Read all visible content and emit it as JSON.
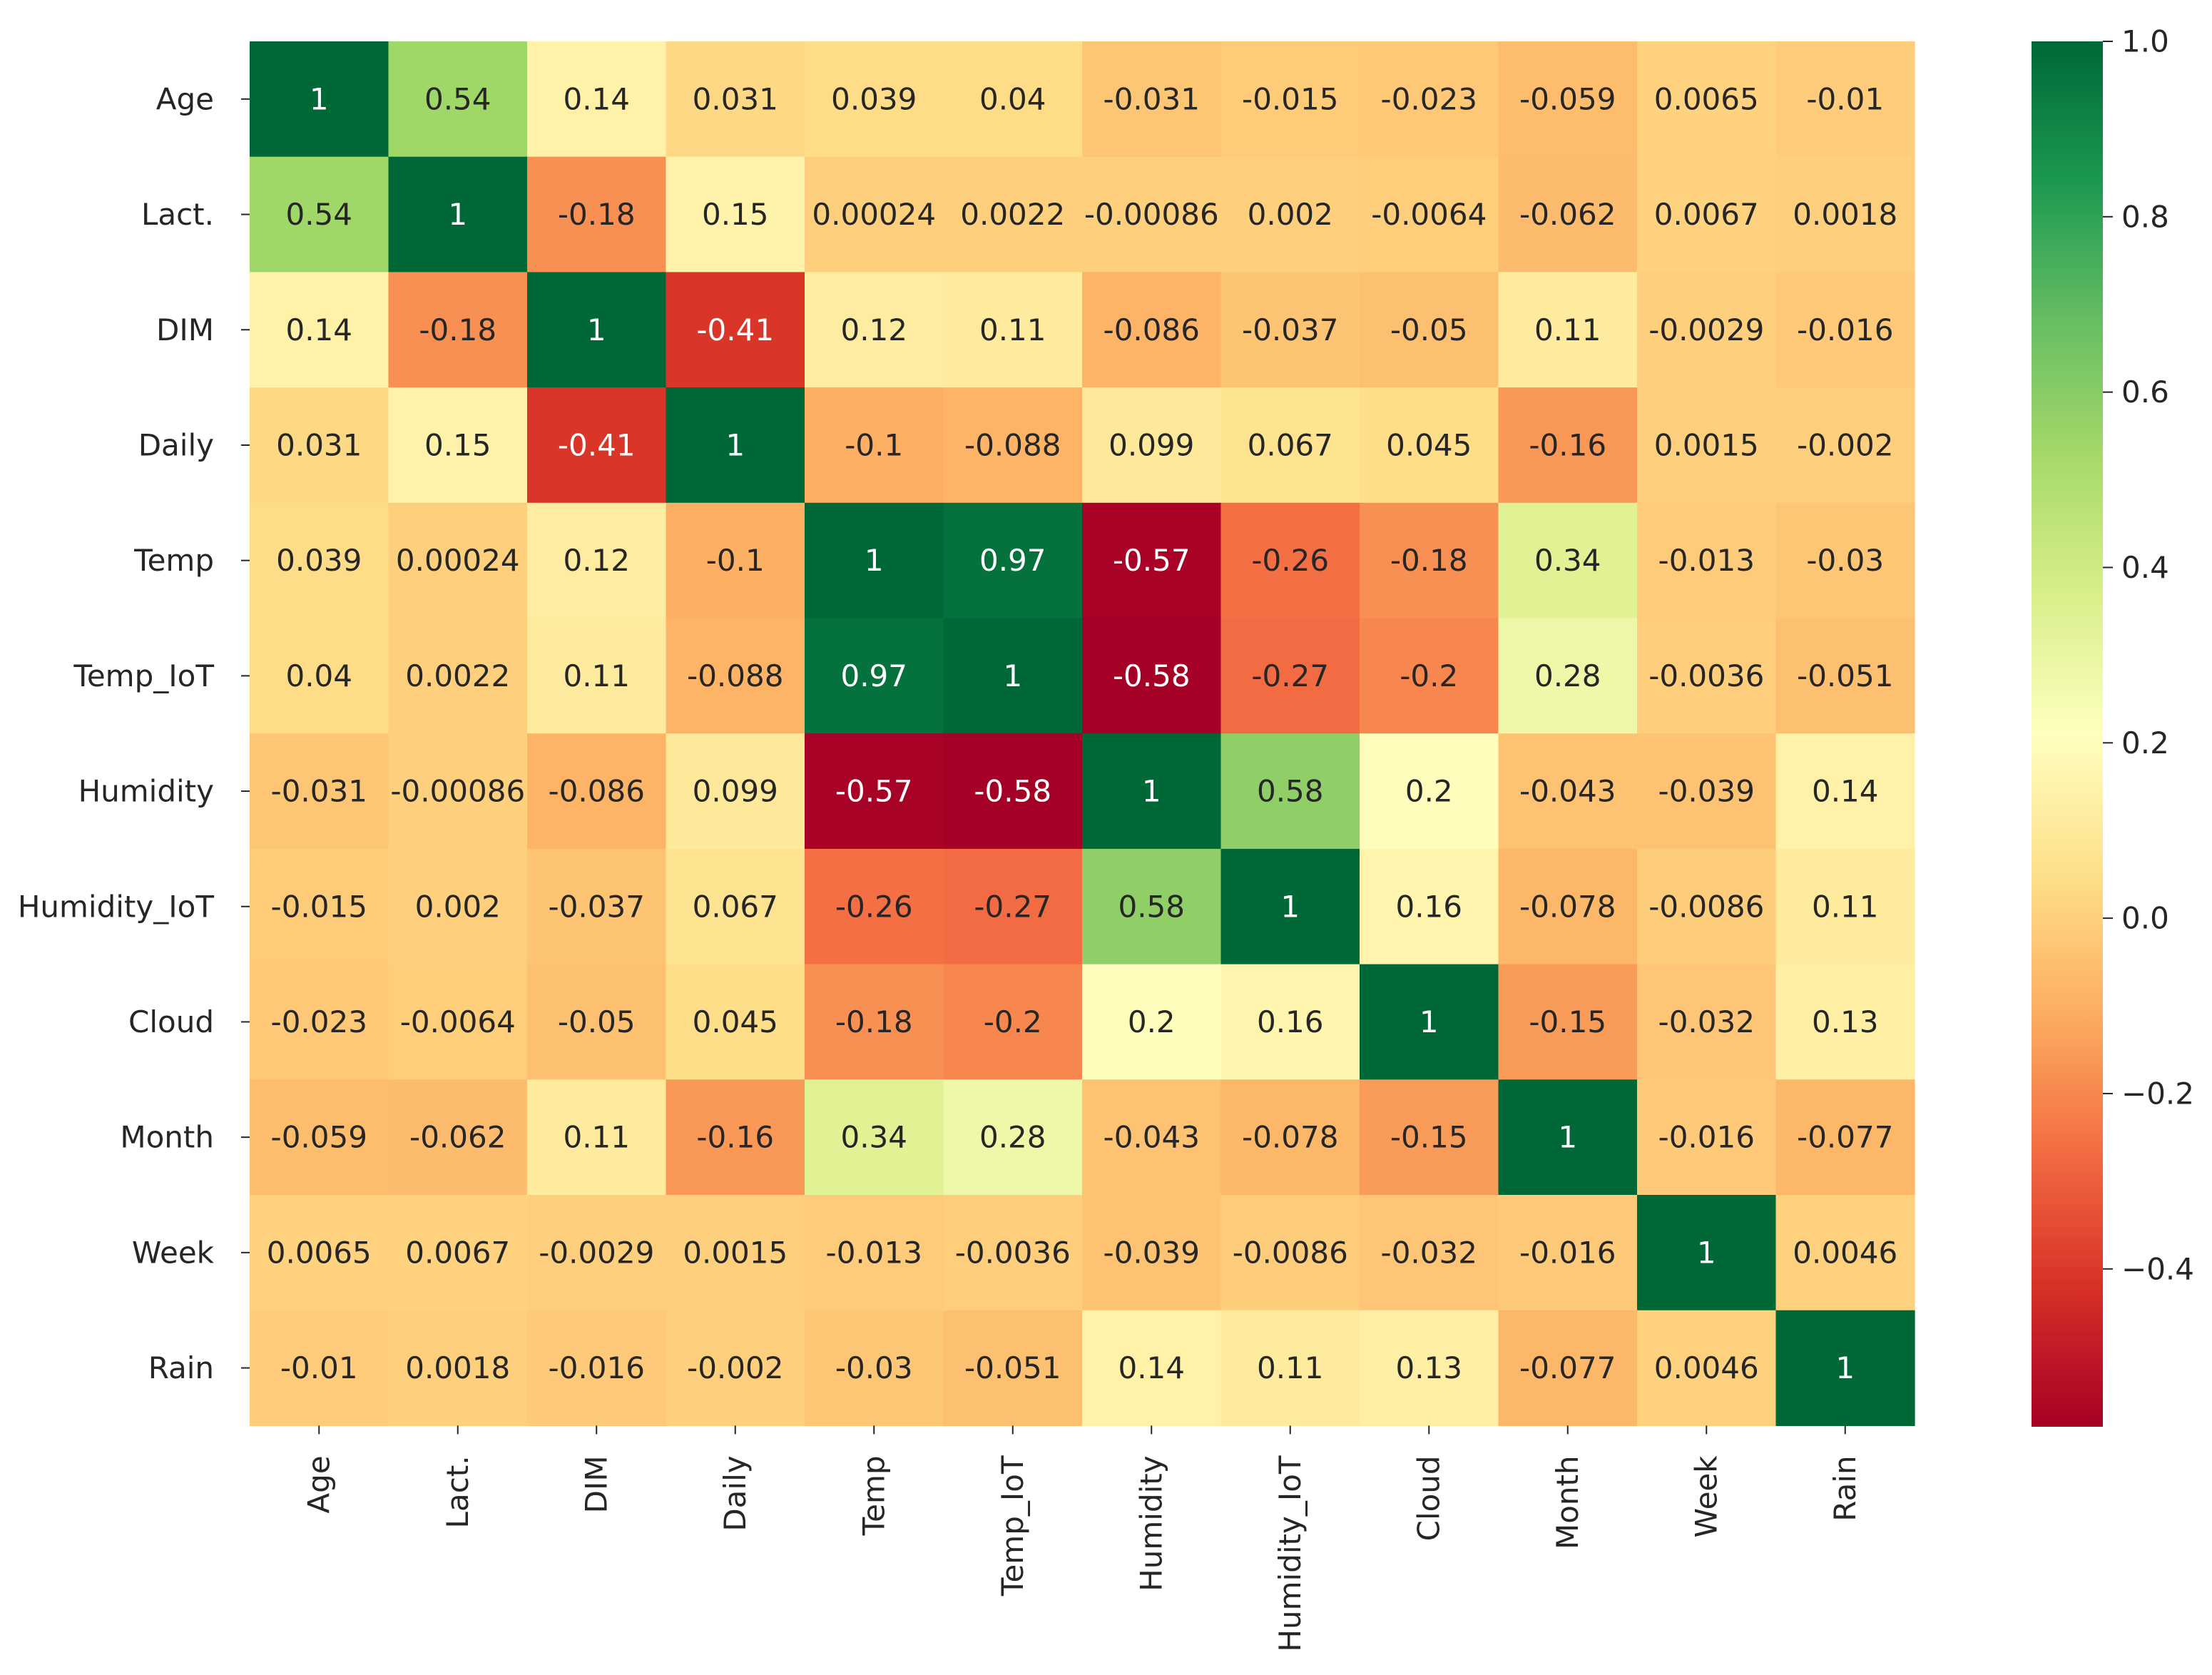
{
  "chart_data": {
    "type": "heatmap",
    "title": "",
    "xlabel": "",
    "ylabel": "",
    "labels": [
      "Age",
      "Lact.",
      "DIM",
      "Daily",
      "Temp",
      "Temp_IoT",
      "Humidity",
      "Humidity_IoT",
      "Cloud",
      "Month",
      "Week",
      "Rain"
    ],
    "matrix": [
      [
        "1",
        "0.54",
        "0.14",
        "0.031",
        "0.039",
        "0.04",
        "-0.031",
        "-0.015",
        "-0.023",
        "-0.059",
        "0.0065",
        "-0.01"
      ],
      [
        "0.54",
        "1",
        "-0.18",
        "0.15",
        "0.00024",
        "0.0022",
        "-0.00086",
        "0.002",
        "-0.0064",
        "-0.062",
        "0.0067",
        "0.0018"
      ],
      [
        "0.14",
        "-0.18",
        "1",
        "-0.41",
        "0.12",
        "0.11",
        "-0.086",
        "-0.037",
        "-0.05",
        "0.11",
        "-0.0029",
        "-0.016"
      ],
      [
        "0.031",
        "0.15",
        "-0.41",
        "1",
        "-0.1",
        "-0.088",
        "0.099",
        "0.067",
        "0.045",
        "-0.16",
        "0.0015",
        "-0.002"
      ],
      [
        "0.039",
        "0.00024",
        "0.12",
        "-0.1",
        "1",
        "0.97",
        "-0.57",
        "-0.26",
        "-0.18",
        "0.34",
        "-0.013",
        "-0.03"
      ],
      [
        "0.04",
        "0.0022",
        "0.11",
        "-0.088",
        "0.97",
        "1",
        "-0.58",
        "-0.27",
        "-0.2",
        "0.28",
        "-0.0036",
        "-0.051"
      ],
      [
        "-0.031",
        "-0.00086",
        "-0.086",
        "0.099",
        "-0.57",
        "-0.58",
        "1",
        "0.58",
        "0.2",
        "-0.043",
        "-0.039",
        "0.14"
      ],
      [
        "-0.015",
        "0.002",
        "-0.037",
        "0.067",
        "-0.26",
        "-0.27",
        "0.58",
        "1",
        "0.16",
        "-0.078",
        "-0.0086",
        "0.11"
      ],
      [
        "-0.023",
        "-0.0064",
        "-0.05",
        "0.045",
        "-0.18",
        "-0.2",
        "0.2",
        "0.16",
        "1",
        "-0.15",
        "-0.032",
        "0.13"
      ],
      [
        "-0.059",
        "-0.062",
        "0.11",
        "-0.16",
        "0.34",
        "0.28",
        "-0.043",
        "-0.078",
        "-0.15",
        "1",
        "-0.016",
        "-0.077"
      ],
      [
        "0.0065",
        "0.0067",
        "-0.0029",
        "0.0015",
        "-0.013",
        "-0.0036",
        "-0.039",
        "-0.0086",
        "-0.032",
        "-0.016",
        "1",
        "0.0046"
      ],
      [
        "-0.01",
        "0.0018",
        "-0.016",
        "-0.002",
        "-0.03",
        "-0.051",
        "0.14",
        "0.11",
        "0.13",
        "-0.077",
        "0.0046",
        "1"
      ]
    ],
    "colorbar": {
      "min": -0.58,
      "max": 1.0,
      "ticks": [
        1.0,
        0.8,
        0.6,
        0.4,
        0.2,
        0.0,
        -0.2,
        -0.4
      ],
      "tick_labels": [
        "1.0",
        "0.8",
        "0.6",
        "0.4",
        "0.2",
        "0.0",
        "−0.2",
        "−0.4"
      ],
      "colormap": "RdYlGn",
      "colormap_stops": [
        "#a50026",
        "#d73027",
        "#f46d43",
        "#fdae61",
        "#fee08b",
        "#ffffbf",
        "#d9ef8b",
        "#a6d96a",
        "#66bd63",
        "#1a9850",
        "#006837"
      ]
    },
    "text_color_dark": "#262626",
    "text_color_light": "#ffffff"
  }
}
